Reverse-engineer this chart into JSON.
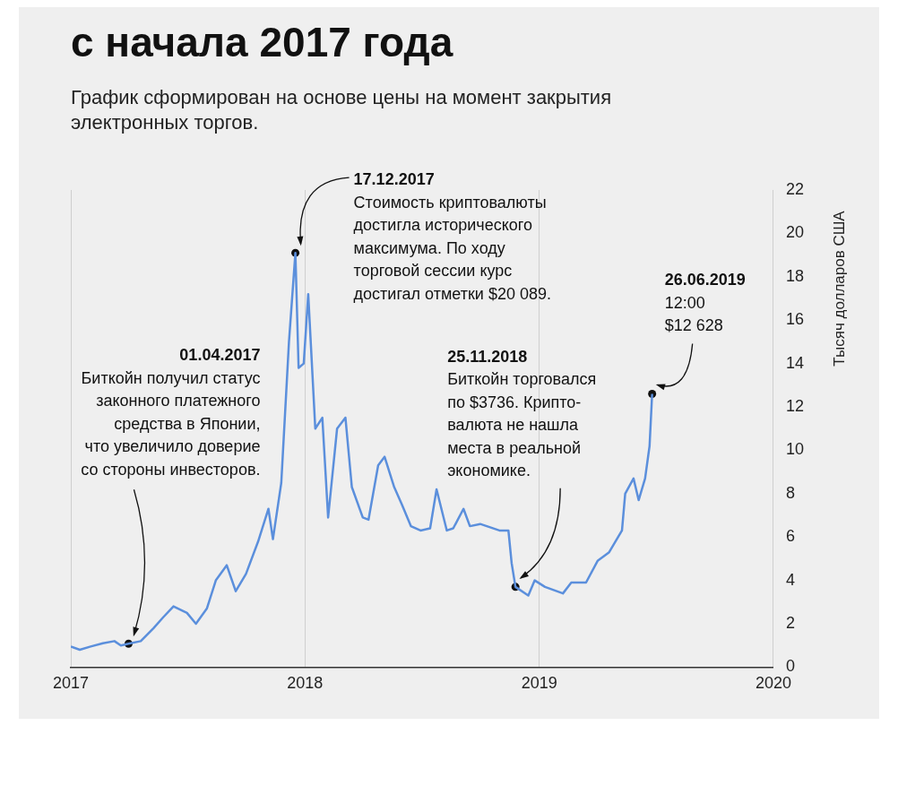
{
  "chart_data": {
    "type": "line",
    "title": "с начала 2017 года",
    "subtitle": "График сформирован на основе цены на момент закрытия электронных торгов.",
    "ylabel": "Тысяч долларов США",
    "x": [
      "2017-01-01",
      "2017-01-15",
      "2017-02-01",
      "2017-02-20",
      "2017-03-10",
      "2017-03-20",
      "2017-04-01",
      "2017-04-20",
      "2017-05-10",
      "2017-05-25",
      "2017-06-10",
      "2017-07-01",
      "2017-07-15",
      "2017-08-01",
      "2017-08-15",
      "2017-09-01",
      "2017-09-15",
      "2017-10-01",
      "2017-10-20",
      "2017-11-05",
      "2017-11-12",
      "2017-11-25",
      "2017-12-07",
      "2017-12-17",
      "2017-12-22",
      "2017-12-30",
      "2018-01-06",
      "2018-01-17",
      "2018-01-28",
      "2018-02-06",
      "2018-02-20",
      "2018-03-05",
      "2018-03-15",
      "2018-04-01",
      "2018-04-10",
      "2018-04-25",
      "2018-05-05",
      "2018-05-20",
      "2018-06-01",
      "2018-06-15",
      "2018-06-30",
      "2018-07-15",
      "2018-07-25",
      "2018-08-10",
      "2018-08-20",
      "2018-09-05",
      "2018-09-15",
      "2018-10-01",
      "2018-10-31",
      "2018-11-14",
      "2018-11-19",
      "2018-11-25",
      "2018-12-15",
      "2018-12-25",
      "2019-01-10",
      "2019-02-07",
      "2019-02-20",
      "2019-03-15",
      "2019-04-02",
      "2019-04-20",
      "2019-05-10",
      "2019-05-15",
      "2019-05-28",
      "2019-06-05",
      "2019-06-15",
      "2019-06-22",
      "2019-06-26"
    ],
    "series": [
      {
        "color": "#5b8fdc",
        "marker": "none",
        "values": [
          0.95,
          0.8,
          0.95,
          1.1,
          1.2,
          1.0,
          1.08,
          1.2,
          1.8,
          2.3,
          2.8,
          2.5,
          2.0,
          2.7,
          4.0,
          4.7,
          3.5,
          4.3,
          5.8,
          7.3,
          5.9,
          8.5,
          15.0,
          19.1,
          13.8,
          14.0,
          17.2,
          11.0,
          11.5,
          6.9,
          11.0,
          11.5,
          8.3,
          6.9,
          6.8,
          9.3,
          9.7,
          8.3,
          7.5,
          6.5,
          6.3,
          6.4,
          8.2,
          6.3,
          6.4,
          7.3,
          6.5,
          6.6,
          6.3,
          6.3,
          4.8,
          3.7,
          3.3,
          4.0,
          3.7,
          3.4,
          3.9,
          3.9,
          4.9,
          5.3,
          6.3,
          8.0,
          8.7,
          7.7,
          8.7,
          10.2,
          12.6
        ]
      },
      {
        "type": "scatter",
        "color": "#111111",
        "marker": "circle",
        "x": [
          "2017-04-01",
          "2017-12-17",
          "2018-11-25",
          "2019-06-26"
        ],
        "values": [
          1.08,
          19.1,
          3.7,
          12.6
        ]
      }
    ],
    "xlim": [
      "2017",
      "2020"
    ],
    "xticks": [
      {
        "value": "2017",
        "label": "2017"
      },
      {
        "value": "2018",
        "label": "2018"
      },
      {
        "value": "2019",
        "label": "2019"
      },
      {
        "value": "2020",
        "label": "2020"
      }
    ],
    "ylim": [
      0,
      22
    ],
    "yticks": [
      0,
      2,
      4,
      6,
      8,
      10,
      12,
      14,
      16,
      18,
      20,
      22
    ],
    "grid": "x",
    "legend": false,
    "line_style": "solid",
    "annotations": [
      "01.04.2017\nБиткойн получил статус\nзаконного платежного\nсредства в Японии,\nчто увеличило доверие\nсо стороны инвесторов.",
      "17.12.2017\nСтоимость криптовалюты\nдостигла исторического\nмаксимума. По ходу\nторговой сессии курс\nдостигал отметки $20 089.",
      "25.11.2018\nБиткойн торговался\nпо $3736. Крипто-\nвалюта не нашла\nместа в реальной\nэкономике.",
      "26.06.2019\n12:00\n$12 628"
    ]
  }
}
